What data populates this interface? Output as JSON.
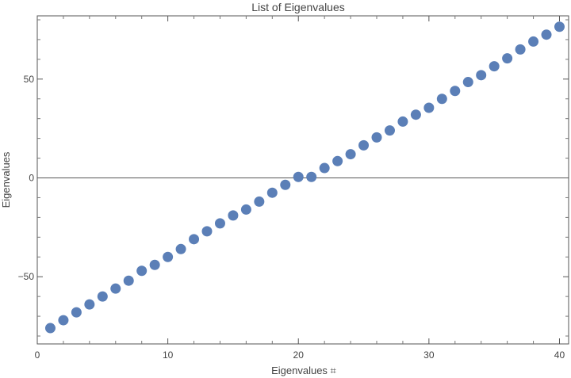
{
  "chart_data": {
    "type": "scatter",
    "title": "List of Eigenvalues",
    "xlabel": "Eigenvalues ⌗",
    "ylabel": "Eigenvalues",
    "xlim": [
      0,
      40.7
    ],
    "ylim": [
      -84,
      82
    ],
    "x_ticks": [
      0,
      10,
      20,
      30,
      40
    ],
    "x_tick_labels": [
      "0",
      "10",
      "20",
      "30",
      "40"
    ],
    "y_ticks": [
      -50,
      0,
      50
    ],
    "y_tick_labels": [
      "−50",
      "0",
      "50"
    ],
    "grid": false,
    "zero_line": true,
    "marker_color": "#5b7fb7",
    "series": [
      {
        "x": [
          1,
          2,
          3,
          4,
          5,
          6,
          7,
          8,
          9,
          10,
          11,
          12,
          13,
          14,
          15,
          16,
          17,
          18,
          19,
          20,
          21,
          22,
          23,
          24,
          25,
          26,
          27,
          28,
          29,
          30,
          31,
          32,
          33,
          34,
          35,
          36,
          37,
          38,
          39,
          40
        ],
        "values": [
          -76,
          -72,
          -68,
          -64,
          -60,
          -56,
          -52,
          -47,
          -44,
          -40,
          -36,
          -31,
          -27,
          -23,
          -19,
          -16,
          -12,
          -7.5,
          -3.5,
          0.5,
          0.5,
          5,
          8.5,
          12,
          16.5,
          20.5,
          24,
          28.5,
          32,
          35.5,
          40,
          44,
          48.5,
          52,
          56.5,
          60.5,
          65,
          69,
          72.5,
          76.5
        ]
      }
    ]
  }
}
